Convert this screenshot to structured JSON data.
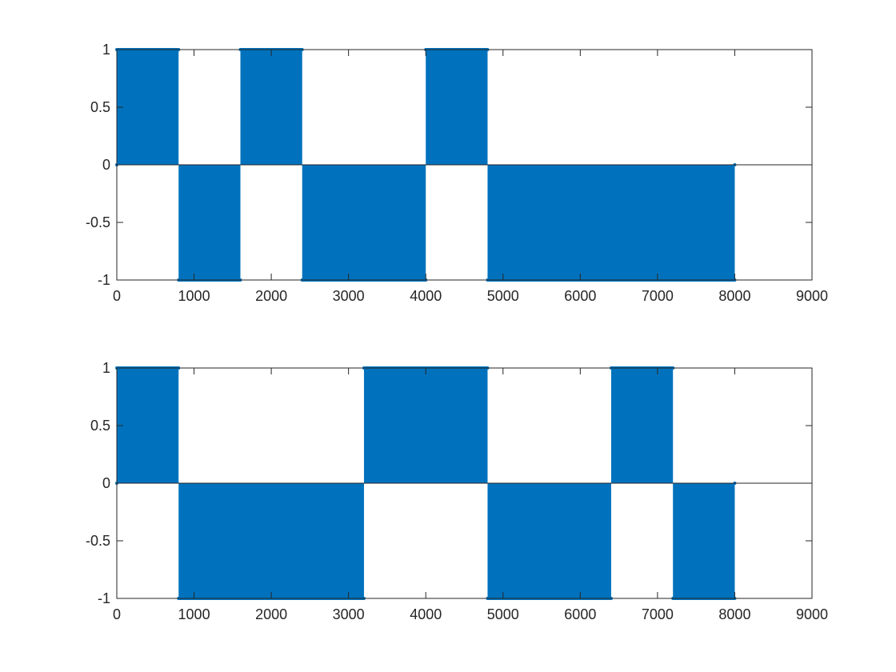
{
  "figure": {
    "background": "#ffffff",
    "series_color": "#0072BD",
    "axis_color": "#262626"
  },
  "chart_data": [
    {
      "type": "area",
      "panel": "top",
      "title": "",
      "xlabel": "",
      "ylabel": "",
      "xlim": [
        0,
        9000
      ],
      "ylim": [
        -1,
        1
      ],
      "xticks": [
        0,
        1000,
        2000,
        3000,
        4000,
        5000,
        6000,
        7000,
        8000,
        9000
      ],
      "yticks": [
        -1,
        -0.5,
        0,
        0.5,
        1
      ],
      "xtick_labels": [
        "0",
        "1000",
        "2000",
        "3000",
        "4000",
        "5000",
        "6000",
        "7000",
        "8000",
        "9000"
      ],
      "ytick_labels": [
        "-1",
        "-0.5",
        "0",
        "0.5",
        "1"
      ],
      "grid": false,
      "baseline": 0,
      "segments": [
        {
          "x_start": 0,
          "x_end": 800,
          "value": 1
        },
        {
          "x_start": 800,
          "x_end": 1600,
          "value": -1
        },
        {
          "x_start": 1600,
          "x_end": 2400,
          "value": 1
        },
        {
          "x_start": 2400,
          "x_end": 4000,
          "value": -1
        },
        {
          "x_start": 4000,
          "x_end": 4800,
          "value": 1
        },
        {
          "x_start": 4800,
          "x_end": 8000,
          "value": -1
        }
      ]
    },
    {
      "type": "area",
      "panel": "bottom",
      "title": "",
      "xlabel": "",
      "ylabel": "",
      "xlim": [
        0,
        9000
      ],
      "ylim": [
        -1,
        1
      ],
      "xticks": [
        0,
        1000,
        2000,
        3000,
        4000,
        5000,
        6000,
        7000,
        8000,
        9000
      ],
      "yticks": [
        -1,
        -0.5,
        0,
        0.5,
        1
      ],
      "xtick_labels": [
        "0",
        "1000",
        "2000",
        "3000",
        "4000",
        "5000",
        "6000",
        "7000",
        "8000",
        "9000"
      ],
      "ytick_labels": [
        "-1",
        "-0.5",
        "0",
        "0.5",
        "1"
      ],
      "grid": false,
      "baseline": 0,
      "segments": [
        {
          "x_start": 0,
          "x_end": 800,
          "value": 1
        },
        {
          "x_start": 800,
          "x_end": 3200,
          "value": -1
        },
        {
          "x_start": 3200,
          "x_end": 4800,
          "value": 1
        },
        {
          "x_start": 4800,
          "x_end": 6400,
          "value": -1
        },
        {
          "x_start": 6400,
          "x_end": 7200,
          "value": 1
        },
        {
          "x_start": 7200,
          "x_end": 8000,
          "value": -1
        }
      ]
    }
  ]
}
